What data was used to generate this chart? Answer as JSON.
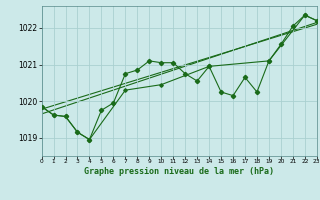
{
  "title": "Graphe pression niveau de la mer (hPa)",
  "bg_color": "#cce9e9",
  "grid_color": "#aad0d0",
  "line_color": "#1a6b1a",
  "x_min": 0,
  "x_max": 23,
  "y_min": 1018.5,
  "y_max": 1022.6,
  "y_ticks": [
    1019,
    1020,
    1021,
    1022
  ],
  "x_ticks": [
    0,
    1,
    2,
    3,
    4,
    5,
    6,
    7,
    8,
    9,
    10,
    11,
    12,
    13,
    14,
    15,
    16,
    17,
    18,
    19,
    20,
    21,
    22,
    23
  ],
  "series1": [
    [
      0,
      1019.85
    ],
    [
      1,
      1019.62
    ],
    [
      2,
      1019.58
    ],
    [
      3,
      1019.15
    ],
    [
      4,
      1018.95
    ],
    [
      5,
      1019.75
    ],
    [
      6,
      1019.95
    ],
    [
      7,
      1020.75
    ],
    [
      8,
      1020.85
    ],
    [
      9,
      1021.1
    ],
    [
      10,
      1021.05
    ],
    [
      11,
      1021.05
    ],
    [
      12,
      1020.75
    ],
    [
      13,
      1020.55
    ],
    [
      14,
      1020.95
    ],
    [
      15,
      1020.25
    ],
    [
      16,
      1020.15
    ],
    [
      17,
      1020.65
    ],
    [
      18,
      1020.25
    ],
    [
      19,
      1021.1
    ],
    [
      20,
      1021.55
    ],
    [
      21,
      1022.05
    ],
    [
      22,
      1022.35
    ],
    [
      23,
      1022.2
    ]
  ],
  "series2": [
    [
      0,
      1019.85
    ],
    [
      1,
      1019.62
    ],
    [
      2,
      1019.58
    ],
    [
      3,
      1019.15
    ],
    [
      4,
      1018.95
    ],
    [
      7,
      1020.3
    ],
    [
      10,
      1020.45
    ],
    [
      14,
      1020.95
    ],
    [
      19,
      1021.1
    ],
    [
      22,
      1022.35
    ],
    [
      23,
      1022.2
    ]
  ],
  "trend_line": [
    [
      0,
      1019.65
    ],
    [
      23,
      1022.15
    ]
  ],
  "trend_line2": [
    [
      0,
      1019.78
    ],
    [
      23,
      1022.1
    ]
  ]
}
